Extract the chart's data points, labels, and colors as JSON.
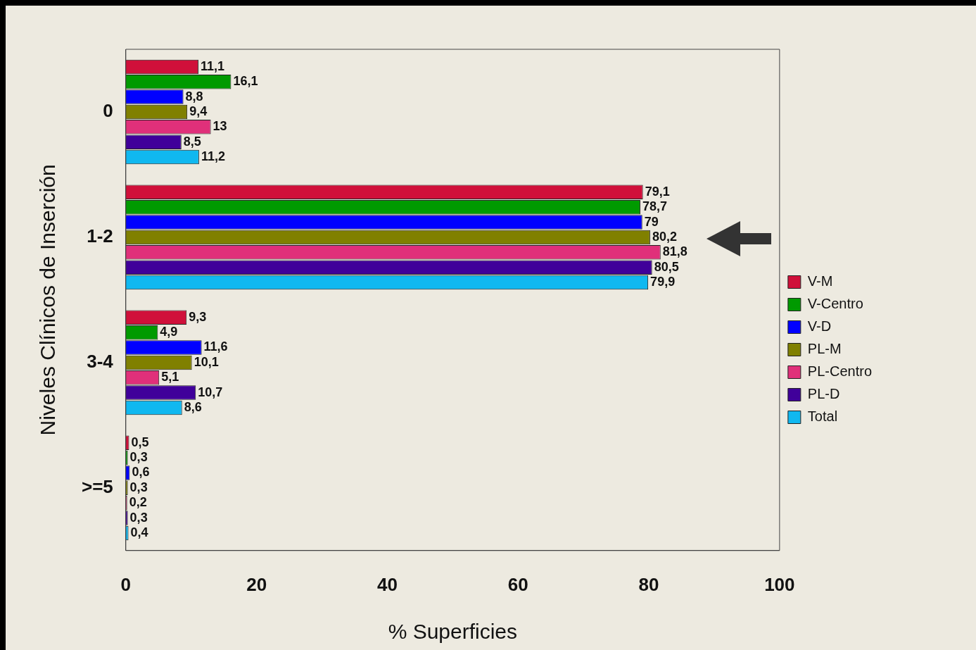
{
  "chart_data": {
    "type": "bar",
    "orientation": "horizontal",
    "xlabel": "% Superficies",
    "ylabel": "Niveles Clínicos de Inserción",
    "categories": [
      "0",
      "1-2",
      "3-4",
      ">=5"
    ],
    "xlim": [
      0,
      100
    ],
    "xticks": [
      0,
      20,
      40,
      60,
      80,
      100
    ],
    "grid": false,
    "legend": "right",
    "series": [
      {
        "name": "V-M",
        "color": "#d0103a",
        "values": [
          11.1,
          79.1,
          9.3,
          0.5
        ],
        "value_labels": [
          "11,1",
          "79,1",
          "9,3",
          "0,5"
        ]
      },
      {
        "name": "V-Centro",
        "color": "#009a00",
        "values": [
          16.1,
          78.7,
          4.9,
          0.3
        ],
        "value_labels": [
          "16,1",
          "78,7",
          "4,9",
          "0,3"
        ]
      },
      {
        "name": "V-D",
        "color": "#0000ff",
        "values": [
          8.8,
          79,
          11.6,
          0.6
        ],
        "value_labels": [
          "8,8",
          "79",
          "11,6",
          "0,6"
        ]
      },
      {
        "name": "PL-M",
        "color": "#808000",
        "values": [
          9.4,
          80.2,
          10.1,
          0.3
        ],
        "value_labels": [
          "9,4",
          "80,2",
          "10,1",
          "0,3"
        ]
      },
      {
        "name": "PL-Centro",
        "color": "#e0307a",
        "values": [
          13,
          81.8,
          5.1,
          0.2
        ],
        "value_labels": [
          "13",
          "81,8",
          "5,1",
          "0,2"
        ]
      },
      {
        "name": "PL-D",
        "color": "#40009a",
        "values": [
          8.5,
          80.5,
          10.7,
          0.3
        ],
        "value_labels": [
          "8,5",
          "80,5",
          "10,7",
          "0,3"
        ]
      },
      {
        "name": "Total",
        "color": "#10b8f0",
        "values": [
          11.2,
          79.9,
          8.6,
          0.4
        ],
        "value_labels": [
          "11,2",
          "79,9",
          "8,6",
          "0,4"
        ]
      }
    ]
  }
}
